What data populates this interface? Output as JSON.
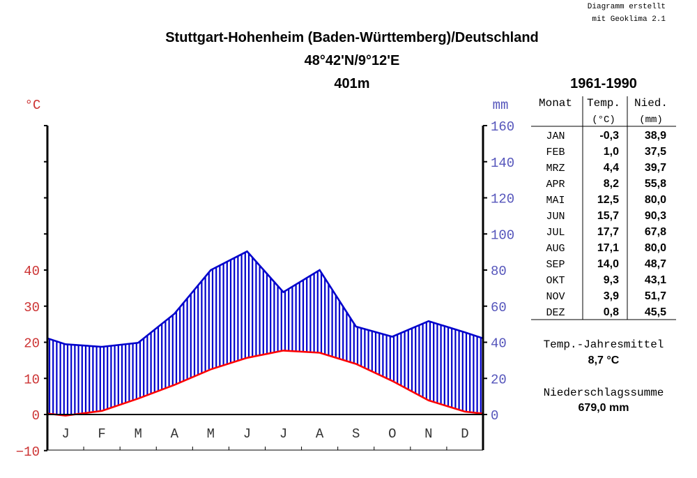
{
  "credit": {
    "line1": "Diagramm erstellt",
    "line2": "mit Geoklima 2.1"
  },
  "header": {
    "station": "Stuttgart-Hohenheim (Baden-Württemberg)/Deutschland",
    "coords": "48°42'N/9°12'E",
    "elevation": "401m",
    "period": "1961-1990"
  },
  "colors": {
    "temperature": "#ff0000",
    "precipitation": "#0000cc",
    "temp_axis_text": "#cc3333",
    "precip_axis_text": "#5555bb",
    "frame": "#000000"
  },
  "chart_data": {
    "type": "line",
    "categories": [
      "J",
      "F",
      "M",
      "A",
      "M",
      "J",
      "J",
      "A",
      "S",
      "O",
      "N",
      "D"
    ],
    "temp_unit": "°C",
    "precip_unit": "mm",
    "temp_ticks": [
      "40",
      "30",
      "20",
      "10",
      "0",
      "−10"
    ],
    "precip_ticks": [
      "160",
      "140",
      "120",
      "100",
      "80",
      "60",
      "40",
      "20",
      "0"
    ],
    "temp_range": [
      -10,
      80
    ],
    "precip_range": [
      0,
      160
    ],
    "fill_between": "vertical-hatch",
    "series": [
      {
        "axis": "temp",
        "values": [
          -0.3,
          1.0,
          4.4,
          8.2,
          12.5,
          15.7,
          17.7,
          17.1,
          14.0,
          9.3,
          3.9,
          0.8
        ]
      },
      {
        "axis": "precip",
        "values": [
          38.9,
          37.5,
          39.7,
          55.8,
          80.0,
          90.3,
          67.8,
          80.0,
          48.7,
          43.1,
          51.7,
          45.5
        ]
      }
    ]
  },
  "table": {
    "headers": [
      "Monat",
      "Temp.",
      "Nied."
    ],
    "units": [
      "",
      "(°C)",
      "(mm)"
    ],
    "rows": [
      [
        "JAN",
        "-0,3",
        "38,9"
      ],
      [
        "FEB",
        "1,0",
        "37,5"
      ],
      [
        "MRZ",
        "4,4",
        "39,7"
      ],
      [
        "APR",
        "8,2",
        "55,8"
      ],
      [
        "MAI",
        "12,5",
        "80,0"
      ],
      [
        "JUN",
        "15,7",
        "90,3"
      ],
      [
        "JUL",
        "17,7",
        "67,8"
      ],
      [
        "AUG",
        "17,1",
        "80,0"
      ],
      [
        "SEP",
        "14,0",
        "48,7"
      ],
      [
        "OKT",
        "9,3",
        "43,1"
      ],
      [
        "NOV",
        "3,9",
        "51,7"
      ],
      [
        "DEZ",
        "0,8",
        "45,5"
      ]
    ]
  },
  "summary": {
    "temp_label": "Temp.-Jahresmittel",
    "temp_value": "8,7 °C",
    "precip_label": "Niederschlagssumme",
    "precip_value": "679,0 mm"
  }
}
